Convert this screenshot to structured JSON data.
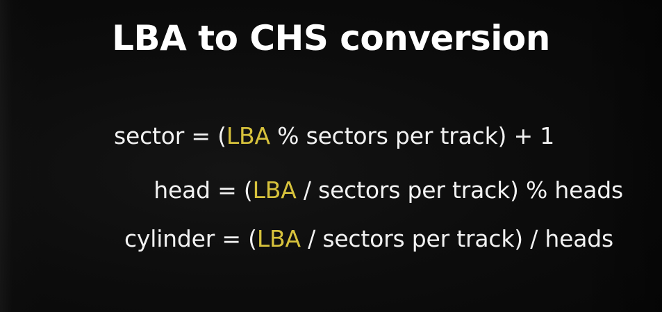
{
  "title": "LBA to CHS conversion",
  "accent_color": "#d7c23c",
  "formulas": [
    {
      "lhs": "sector = (",
      "var": "LBA",
      "rest": " % sectors per track) + 1"
    },
    {
      "lhs": "head = (",
      "var": "LBA",
      "rest": " / sectors per track) % heads"
    },
    {
      "lhs": "cylinder = (",
      "var": "LBA",
      "rest": " / sectors per track) / heads"
    }
  ]
}
